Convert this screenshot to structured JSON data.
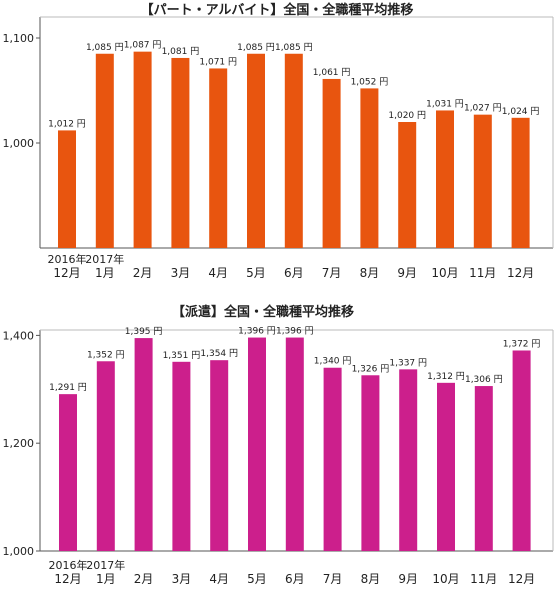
{
  "chart_data": [
    {
      "type": "bar",
      "title": "【パート・アルバイト】全国・全職種平均推移",
      "categories": [
        "2016年12月",
        "2017年1月",
        "2月",
        "3月",
        "4月",
        "5月",
        "6月",
        "7月",
        "8月",
        "9月",
        "10月",
        "11月",
        "12月"
      ],
      "category_labels": [
        [
          "2016年",
          "12月"
        ],
        [
          "2017年",
          "1月"
        ],
        [
          "",
          "2月"
        ],
        [
          "",
          "3月"
        ],
        [
          "",
          "4月"
        ],
        [
          "",
          "5月"
        ],
        [
          "",
          "6月"
        ],
        [
          "",
          "7月"
        ],
        [
          "",
          "8月"
        ],
        [
          "",
          "9月"
        ],
        [
          "",
          "10月"
        ],
        [
          "",
          "11月"
        ],
        [
          "",
          "12月"
        ]
      ],
      "values": [
        1012,
        1085,
        1087,
        1081,
        1071,
        1085,
        1085,
        1061,
        1052,
        1020,
        1031,
        1027,
        1024
      ],
      "value_labels": [
        "1,012 円",
        "1,085 円",
        "1,087 円",
        "1,081 円",
        "1,071 円",
        "1,085 円",
        "1,085 円",
        "1,061 円",
        "1,052 円",
        "1,020 円",
        "1,031 円",
        "1,027 円",
        "1,024 円"
      ],
      "yticks": [
        1000,
        1100
      ],
      "ytick_labels": [
        "1,000",
        "1,100"
      ],
      "ylim": [
        900,
        1120
      ],
      "grid": false,
      "color": "#e8550f"
    },
    {
      "type": "bar",
      "title": "【派遣】全国・全職種平均推移",
      "categories": [
        "2016年12月",
        "2017年1月",
        "2月",
        "3月",
        "4月",
        "5月",
        "6月",
        "7月",
        "8月",
        "9月",
        "10月",
        "11月",
        "12月"
      ],
      "category_labels": [
        [
          "2016年",
          "12月"
        ],
        [
          "2017年",
          "1月"
        ],
        [
          "",
          "2月"
        ],
        [
          "",
          "3月"
        ],
        [
          "",
          "4月"
        ],
        [
          "",
          "5月"
        ],
        [
          "",
          "6月"
        ],
        [
          "",
          "7月"
        ],
        [
          "",
          "8月"
        ],
        [
          "",
          "9月"
        ],
        [
          "",
          "10月"
        ],
        [
          "",
          "11月"
        ],
        [
          "",
          "12月"
        ]
      ],
      "values": [
        1291,
        1352,
        1395,
        1351,
        1354,
        1396,
        1396,
        1340,
        1326,
        1337,
        1312,
        1306,
        1372
      ],
      "value_labels": [
        "1,291 円",
        "1,352 円",
        "1,395 円",
        "1,351 円",
        "1,354 円",
        "1,396 円",
        "1,396 円",
        "1,340 円",
        "1,326 円",
        "1,337 円",
        "1,312 円",
        "1,306 円",
        "1,372 円"
      ],
      "yticks": [
        1000,
        1200,
        1400
      ],
      "ytick_labels": [
        "1,000",
        "1,200",
        "1,400"
      ],
      "ylim": [
        1000,
        1410
      ],
      "grid": false,
      "color": "#cc1f8c"
    }
  ]
}
